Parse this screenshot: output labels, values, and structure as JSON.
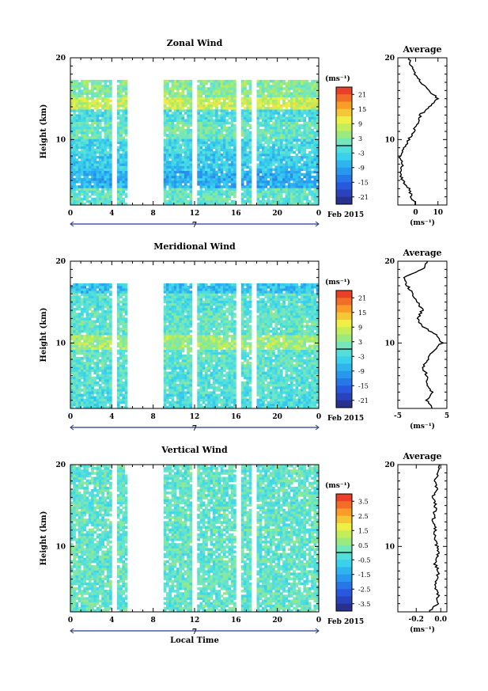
{
  "chart_data": [
    {
      "type": "heatmap",
      "title": "Zonal Wind",
      "ylabel": "Height (km)",
      "ylim": [
        2,
        20
      ],
      "yticks": [
        "10",
        "20"
      ],
      "xlim": [
        0,
        24
      ],
      "xticks": [
        "0",
        "4",
        "8",
        "12",
        "16",
        "20",
        "0"
      ],
      "date_marker": "7",
      "date_label": "Feb 2015",
      "colorbar": {
        "unit": "(ms⁻¹)",
        "min": -24,
        "max": 24,
        "labels": [
          "21",
          "15",
          "9",
          "3",
          "-3",
          "-9",
          "-15",
          "-21"
        ]
      },
      "data_gaps_hours": [
        [
          4.0,
          4.4
        ],
        [
          5.6,
          8.8
        ],
        [
          11.8,
          12.1
        ],
        [
          16.1,
          16.3
        ],
        [
          17.6,
          17.9
        ]
      ],
      "top_of_data_km": 17.3,
      "profile_bands_ms": [
        {
          "from_km": 2,
          "to_km": 4,
          "value": 0
        },
        {
          "from_km": 4,
          "to_km": 6,
          "value": -8
        },
        {
          "from_km": 6,
          "to_km": 8,
          "value": -5
        },
        {
          "from_km": 8,
          "to_km": 10,
          "value": -3
        },
        {
          "from_km": 10,
          "to_km": 12,
          "value": 1
        },
        {
          "from_km": 12,
          "to_km": 13.5,
          "value": -2
        },
        {
          "from_km": 13.5,
          "to_km": 15,
          "value": 8
        },
        {
          "from_km": 15,
          "to_km": 17.3,
          "value": 3
        }
      ],
      "average_profile": {
        "title": "Average",
        "xlabel": "(ms⁻¹)",
        "xticks": [
          "0",
          "10"
        ],
        "xlim": [
          -8,
          14
        ],
        "yticks": [
          "10",
          "20"
        ],
        "height_km": [
          2,
          3,
          4,
          5,
          6,
          7,
          8,
          9,
          10,
          11,
          12,
          13,
          14,
          15,
          16,
          17,
          18,
          19,
          20
        ],
        "values": [
          0,
          -2,
          -3,
          -6,
          -7,
          -6,
          -7,
          -5,
          -3,
          -1,
          1,
          2,
          6,
          10,
          6,
          2,
          0,
          -2,
          -3
        ]
      }
    },
    {
      "type": "heatmap",
      "title": "Meridional Wind",
      "ylabel": "Height (km)",
      "ylim": [
        2,
        20
      ],
      "yticks": [
        "10",
        "20"
      ],
      "xlim": [
        0,
        24
      ],
      "xticks": [
        "0",
        "4",
        "8",
        "12",
        "16",
        "20",
        "0"
      ],
      "date_marker": "7",
      "date_label": "Feb 2015",
      "colorbar": {
        "unit": "(ms⁻¹)",
        "min": -24,
        "max": 24,
        "labels": [
          "21",
          "15",
          "9",
          "3",
          "-3",
          "-9",
          "-15",
          "-21"
        ]
      },
      "data_gaps_hours": [
        [
          4.0,
          4.4
        ],
        [
          5.6,
          8.8
        ],
        [
          11.8,
          12.1
        ],
        [
          16.1,
          16.3
        ],
        [
          17.6,
          17.9
        ]
      ],
      "top_of_data_km": 17.3,
      "profile_bands_ms": [
        {
          "from_km": 2,
          "to_km": 4,
          "value": -2
        },
        {
          "from_km": 4,
          "to_km": 7,
          "value": -1
        },
        {
          "from_km": 7,
          "to_km": 9,
          "value": 0
        },
        {
          "from_km": 9,
          "to_km": 11,
          "value": 5
        },
        {
          "from_km": 11,
          "to_km": 14,
          "value": 0
        },
        {
          "from_km": 14,
          "to_km": 16,
          "value": -1
        },
        {
          "from_km": 16,
          "to_km": 17.3,
          "value": -6
        }
      ],
      "average_profile": {
        "title": "Average",
        "xlabel": "(ms⁻¹)",
        "xticks": [
          "-5",
          "5"
        ],
        "xlim": [
          -5,
          5
        ],
        "yticks": [
          "10",
          "20"
        ],
        "height_km": [
          2,
          3,
          4,
          5,
          6,
          7,
          8,
          9,
          10,
          11,
          12,
          13,
          14,
          15,
          16,
          17,
          18,
          19,
          20
        ],
        "values": [
          2,
          1,
          2,
          1,
          1,
          0,
          1,
          2,
          4,
          3,
          0,
          -1,
          0,
          -1,
          -2,
          -3,
          -4,
          0,
          1
        ]
      }
    },
    {
      "type": "heatmap",
      "title": "Vertical Wind",
      "ylabel": "Height (km)",
      "xlabel": "Local Time",
      "ylim": [
        2,
        20
      ],
      "yticks": [
        "10",
        "20"
      ],
      "xlim": [
        0,
        24
      ],
      "xticks": [
        "0",
        "4",
        "8",
        "12",
        "16",
        "20",
        "0"
      ],
      "date_marker": "7",
      "date_label": "Feb 2015",
      "colorbar": {
        "unit": "(ms⁻¹)",
        "min": -4,
        "max": 4,
        "labels": [
          "3.5",
          "2.5",
          "1.5",
          "0.5",
          "-0.5",
          "-1.5",
          "-2.5",
          "-3.5"
        ]
      },
      "data_gaps_hours": [
        [
          4.0,
          4.4
        ],
        [
          5.6,
          8.8
        ],
        [
          11.8,
          12.1
        ],
        [
          16.1,
          16.3
        ],
        [
          17.6,
          17.9
        ]
      ],
      "top_of_data_km": 20,
      "profile_bands_ms": [
        {
          "from_km": 2,
          "to_km": 20,
          "value": 0
        }
      ],
      "average_profile": {
        "title": "Average",
        "xlabel": "(ms⁻¹)",
        "xticks": [
          "-0.2",
          "0.0"
        ],
        "xlim": [
          -0.35,
          0.05
        ],
        "yticks": [
          "10",
          "20"
        ],
        "height_km": [
          2,
          3,
          4,
          5,
          6,
          7,
          8,
          9,
          10,
          11,
          12,
          13,
          14,
          15,
          16,
          17,
          18,
          19,
          20
        ],
        "values": [
          -0.1,
          -0.03,
          -0.02,
          -0.04,
          -0.03,
          -0.02,
          -0.05,
          -0.02,
          -0.03,
          -0.05,
          -0.04,
          -0.06,
          -0.05,
          -0.04,
          -0.07,
          -0.03,
          -0.05,
          -0.02,
          -0.01
        ]
      }
    }
  ]
}
